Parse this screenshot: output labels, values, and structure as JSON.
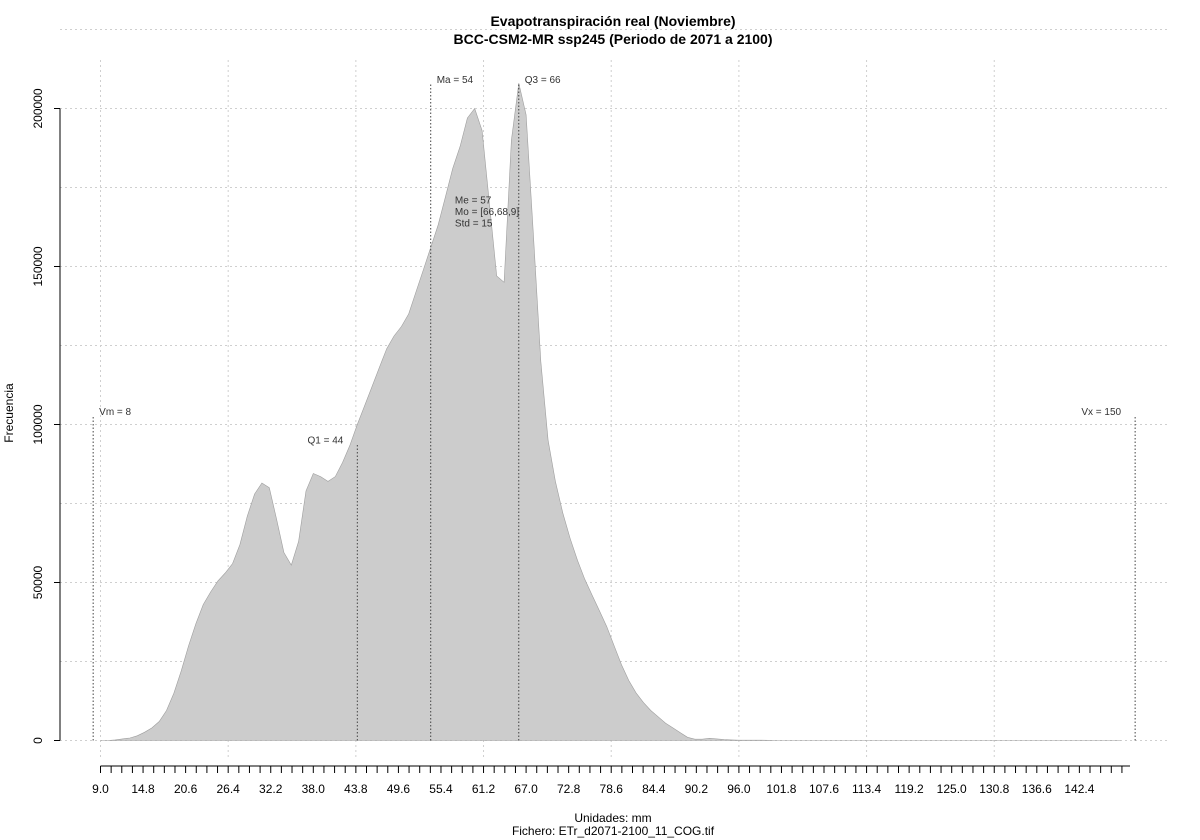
{
  "chart_data": {
    "type": "area",
    "title": "Evapotranspiración real (Noviembre)",
    "subtitle": "BCC-CSM2-MR ssp245 (Periodo de 2071 a 2100)",
    "xlabel": "Unidades: mm",
    "file_caption": "Fichero: ETr_d2071-2100_11_COG.tif",
    "ylabel": "Frecuencia",
    "xlim": [
      9,
      149.3
    ],
    "ylim": [
      0,
      200000
    ],
    "grid": true,
    "fill_color": "#cccccc",
    "x_ticks": [
      "9.0",
      "14.8",
      "20.6",
      "26.4",
      "32.2",
      "38.0",
      "43.8",
      "49.6",
      "55.4",
      "61.2",
      "67.0",
      "72.8",
      "78.6",
      "84.4",
      "90.2",
      "96.0",
      "101.8",
      "107.6",
      "113.4",
      "119.2",
      "125.0",
      "130.8",
      "136.6",
      "142.4"
    ],
    "y_ticks": [
      "0",
      "50000",
      "100000",
      "150000",
      "200000"
    ],
    "series": [
      {
        "x": [
          9,
          10,
          11,
          12,
          13,
          14,
          15,
          16,
          17,
          18,
          19,
          20,
          21,
          22,
          23,
          24,
          25,
          26,
          27,
          28,
          29,
          30,
          31,
          32,
          33,
          34,
          35,
          36,
          37,
          38,
          39,
          40,
          41,
          42,
          43,
          44,
          45,
          46,
          47,
          48,
          49,
          50,
          51,
          52,
          53,
          54,
          55,
          56,
          57,
          58,
          59,
          60,
          61,
          62,
          63,
          64,
          65,
          66,
          67,
          68,
          69,
          70,
          71,
          72,
          73,
          74,
          75,
          76,
          77,
          78,
          79,
          80,
          81,
          82,
          83,
          84,
          85,
          86,
          87,
          88,
          89,
          90,
          91,
          92,
          93,
          94,
          95,
          96,
          97,
          98,
          99,
          100,
          101,
          102,
          103,
          104,
          105,
          106,
          107,
          108,
          110,
          115,
          120,
          130,
          140,
          148
        ],
        "y": [
          0,
          0,
          200,
          500,
          800,
          1500,
          2600,
          4000,
          6000,
          9500,
          15000,
          22000,
          30000,
          37000,
          43000,
          47000,
          50500,
          53000,
          56000,
          62000,
          71000,
          78000,
          81500,
          80000,
          70000,
          59500,
          55500,
          63000,
          79000,
          84500,
          83500,
          82000,
          83500,
          88000,
          93500,
          100000,
          106000,
          112000,
          118000,
          124000,
          128000,
          131000,
          135000,
          142000,
          149000,
          156000,
          163000,
          172000,
          181000,
          188000,
          197000,
          200000,
          193000,
          170000,
          147000,
          145000,
          190000,
          208000,
          198000,
          160000,
          120000,
          95000,
          82000,
          72000,
          64000,
          57000,
          51000,
          46000,
          41000,
          36000,
          30000,
          24000,
          19000,
          15000,
          12000,
          9500,
          7500,
          5500,
          4000,
          2500,
          1000,
          400,
          400,
          700,
          500,
          300,
          200,
          100,
          100,
          100,
          100,
          50,
          0,
          0,
          0,
          0,
          0,
          0,
          0,
          0,
          0,
          0,
          0,
          0,
          0,
          0
        ]
      }
    ],
    "annotations": [
      {
        "label": "Vm = 8",
        "x": 8,
        "y": 103000,
        "label_x": 8,
        "label_y": 103000,
        "anchor": "start"
      },
      {
        "label": "Q1 = 44",
        "x": 44,
        "y": 94000,
        "label_x": 44,
        "label_y": 94000,
        "anchor": "end"
      },
      {
        "label": "Ma = 54",
        "x": 54,
        "y": 208000,
        "label_x": 54,
        "label_y": 208000,
        "anchor": "start"
      },
      {
        "label": "Q3 = 66",
        "x": 66,
        "y": 208000,
        "label_x": 66,
        "label_y": 208000,
        "anchor": "start"
      },
      {
        "label": "Vx = 150",
        "x": 150,
        "y": 103000,
        "label_x": 150,
        "label_y": 103000,
        "anchor": "end"
      }
    ],
    "stats_box": {
      "x": 57.3,
      "y": 170000,
      "lines": [
        "Me = 57",
        "Mo = [66,68,9]",
        "Std = 15"
      ]
    }
  }
}
